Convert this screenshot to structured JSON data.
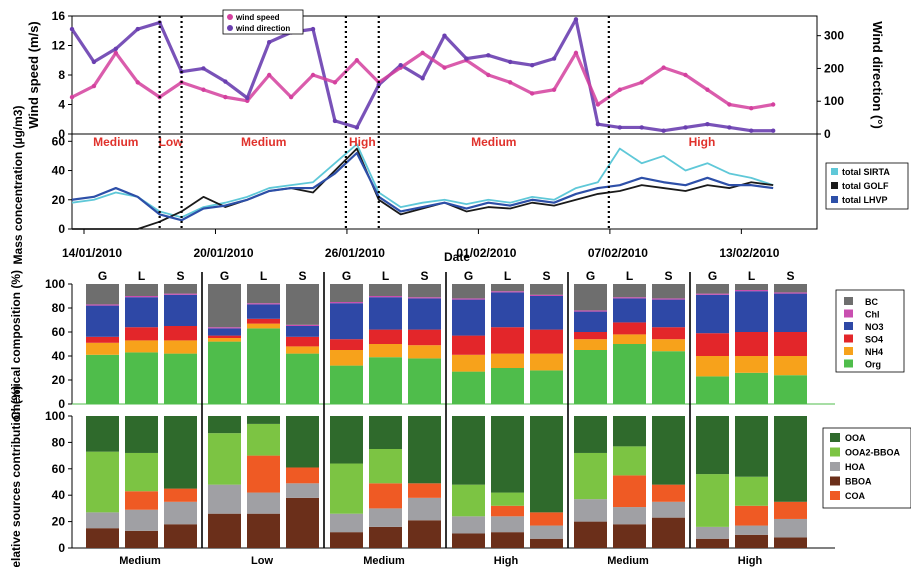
{
  "colors": {
    "wind_speed": "#d4409e",
    "wind_direction": "#6a3fb0",
    "sirta": "#5fc8d8",
    "golf": "#1a1a1a",
    "lhvp": "#2d4fa8",
    "regime_label": "#e0322c",
    "BC": "#6e6e6e",
    "Chl": "#c94fb0",
    "NO3": "#2e48a6",
    "SO4": "#e3262a",
    "NH4": "#f7a21b",
    "Org": "#4fbd4b",
    "OOA": "#2f6a2c",
    "OOA2-BBOA": "#7cc443",
    "HOA": "#a0a0a4",
    "BBOA": "#6b2f1a",
    "COA": "#ef5a24"
  },
  "chart_data": [
    {
      "type": "line",
      "panel": "wind",
      "ylabel": "Wind speed (m/s)",
      "y2label": "Wind direction (°)",
      "ylim": [
        0,
        16
      ],
      "y2lim": [
        0,
        360
      ],
      "yticks": [
        "0",
        "4",
        "8",
        "12",
        "16"
      ],
      "y2ticks": [
        "0",
        "100",
        "200",
        "300"
      ],
      "legend": [
        "wind speed",
        "wind direction"
      ],
      "legend_position": "top-left",
      "x_dates": [
        "14/01/2010",
        "20/01/2010",
        "26/01/2010",
        "01/02/2010",
        "07/02/2010",
        "13/02/2010"
      ],
      "x_day_index": [
        0,
        6,
        12,
        18,
        24,
        30
      ],
      "xlim": [
        0,
        34
      ],
      "series": [
        {
          "name": "wind speed",
          "x": [
            0,
            1,
            2,
            3,
            4,
            5,
            6,
            7,
            8,
            9,
            10,
            11,
            12,
            13,
            14,
            15,
            16,
            17,
            18,
            19,
            20,
            21,
            22,
            23,
            24,
            25,
            26,
            27,
            28,
            29,
            30,
            31,
            32
          ],
          "values": [
            5,
            6.5,
            11,
            7,
            5,
            7,
            6,
            5,
            4.5,
            8,
            5,
            8,
            7,
            10,
            7,
            9,
            11,
            9,
            10,
            8,
            7,
            5.5,
            6,
            11,
            4,
            6,
            7,
            9,
            8,
            6,
            4,
            3.5,
            4
          ]
        },
        {
          "name": "wind direction",
          "x": [
            0,
            1,
            2,
            3,
            4,
            5,
            6,
            7,
            8,
            9,
            10,
            11,
            12,
            13,
            14,
            15,
            16,
            17,
            18,
            19,
            20,
            21,
            22,
            23,
            24,
            25,
            26,
            27,
            28,
            29,
            30,
            31,
            32
          ],
          "values": [
            320,
            220,
            260,
            320,
            340,
            190,
            200,
            160,
            110,
            280,
            310,
            320,
            40,
            20,
            150,
            210,
            170,
            300,
            230,
            240,
            220,
            210,
            230,
            350,
            30,
            20,
            20,
            10,
            20,
            30,
            20,
            10,
            10
          ]
        }
      ]
    },
    {
      "type": "line",
      "panel": "mass",
      "ylabel": "Mass concentration (µg/m3)",
      "xlabel": "Date",
      "ylim": [
        0,
        65
      ],
      "yticks": [
        "0",
        "20",
        "40",
        "60"
      ],
      "legend": [
        "total SIRTA",
        "total GOLF",
        "total LHVP"
      ],
      "legend_position": "right",
      "regimes": [
        {
          "label": "Medium",
          "x_start": 0,
          "x_end": 4
        },
        {
          "label": "Low",
          "x_start": 4,
          "x_end": 5
        },
        {
          "label": "Medium",
          "x_start": 5,
          "x_end": 12.5
        },
        {
          "label": "High",
          "x_start": 12.5,
          "x_end": 14
        },
        {
          "label": "Medium",
          "x_start": 14,
          "x_end": 24.5
        },
        {
          "label": "High",
          "x_start": 24.5,
          "x_end": 33
        }
      ],
      "regime_boundaries": [
        4,
        5,
        12.5,
        14,
        24.5
      ],
      "series": [
        {
          "name": "total SIRTA",
          "x": [
            0,
            1,
            2,
            3,
            4,
            5,
            6,
            7,
            8,
            9,
            10,
            11,
            12,
            13,
            14,
            15,
            16,
            17,
            18,
            19,
            20,
            21,
            22,
            23,
            24,
            25,
            26,
            27,
            28,
            29,
            30,
            31,
            32
          ],
          "values": [
            18,
            20,
            25,
            22,
            12,
            8,
            15,
            18,
            22,
            28,
            30,
            32,
            45,
            58,
            25,
            15,
            18,
            20,
            17,
            20,
            18,
            22,
            20,
            28,
            32,
            55,
            45,
            50,
            40,
            45,
            38,
            35,
            30
          ]
        },
        {
          "name": "total GOLF",
          "x": [
            0,
            1,
            2,
            3,
            4,
            5,
            6,
            7,
            8,
            9,
            10,
            11,
            12,
            13,
            14,
            15,
            16,
            17,
            18,
            19,
            20,
            21,
            22,
            23,
            24,
            25,
            26,
            27,
            28,
            29,
            30,
            31,
            32
          ],
          "values": [
            0,
            0,
            0,
            0,
            5,
            12,
            22,
            15,
            20,
            26,
            28,
            25,
            40,
            55,
            20,
            10,
            14,
            18,
            12,
            15,
            14,
            18,
            16,
            20,
            24,
            26,
            30,
            28,
            26,
            30,
            28,
            32,
            30
          ]
        },
        {
          "name": "total LHVP",
          "x": [
            0,
            1,
            2,
            3,
            4,
            5,
            6,
            7,
            8,
            9,
            10,
            11,
            12,
            13,
            14,
            15,
            16,
            17,
            18,
            19,
            20,
            21,
            22,
            23,
            24,
            25,
            26,
            27,
            28,
            29,
            30,
            31,
            32
          ],
          "values": [
            20,
            22,
            28,
            22,
            10,
            6,
            14,
            16,
            20,
            26,
            28,
            28,
            38,
            52,
            22,
            12,
            15,
            18,
            14,
            18,
            16,
            20,
            18,
            24,
            28,
            30,
            35,
            32,
            30,
            35,
            30,
            30,
            28
          ]
        }
      ]
    },
    {
      "type": "bar",
      "panel": "chemical",
      "stacked": true,
      "ylabel": "Chemical composition (%)",
      "ylim": [
        0,
        100
      ],
      "yticks": [
        "0",
        "20",
        "40",
        "60",
        "80",
        "100"
      ],
      "group_site_labels": [
        "G",
        "L",
        "S"
      ],
      "legend": [
        "BC",
        "Chl",
        "NO3",
        "SO4",
        "NH4",
        "Org"
      ],
      "legend_position": "right",
      "components": [
        "Org",
        "NH4",
        "SO4",
        "NO3",
        "Chl",
        "BC"
      ],
      "groups": [
        {
          "sites": [
            [
              41,
              10,
              5,
              26,
              1,
              17
            ],
            [
              43,
              10,
              11,
              25,
              1,
              10
            ],
            [
              42,
              11,
              12,
              26,
              1,
              8
            ]
          ]
        },
        {
          "sites": [
            [
              52,
              3,
              2,
              6,
              1,
              36
            ],
            [
              63,
              4,
              4,
              12,
              1,
              16
            ],
            [
              42,
              6,
              8,
              9,
              1,
              34
            ]
          ]
        },
        {
          "sites": [
            [
              32,
              13,
              9,
              30,
              1,
              15
            ],
            [
              39,
              11,
              12,
              27,
              1,
              10
            ],
            [
              38,
              11,
              13,
              26,
              1,
              11
            ]
          ]
        },
        {
          "sites": [
            [
              27,
              14,
              16,
              30,
              1,
              12
            ],
            [
              30,
              12,
              22,
              29,
              1,
              6
            ],
            [
              28,
              14,
              20,
              28,
              1,
              9
            ]
          ]
        },
        {
          "sites": [
            [
              45,
              9,
              6,
              17,
              1,
              22
            ],
            [
              50,
              8,
              10,
              20,
              1,
              11
            ],
            [
              44,
              10,
              10,
              23,
              1,
              12
            ]
          ]
        },
        {
          "sites": [
            [
              23,
              17,
              19,
              32,
              1,
              8
            ],
            [
              26,
              14,
              20,
              34,
              1,
              5
            ],
            [
              24,
              16,
              20,
              32,
              1,
              7
            ]
          ]
        }
      ]
    },
    {
      "type": "bar",
      "panel": "sources",
      "stacked": true,
      "ylabel": "Relative sources contribution (%)",
      "ylim": [
        0,
        100
      ],
      "yticks": [
        "0",
        "20",
        "40",
        "60",
        "80",
        "100"
      ],
      "legend": [
        "OOA",
        "OOA2-BBOA",
        "HOA",
        "BBOA",
        "COA"
      ],
      "legend_position": "right",
      "components": [
        "BBOA",
        "HOA",
        "COA",
        "OOA2-BBOA",
        "OOA"
      ],
      "group_labels": [
        "Medium",
        "Low",
        "Medium",
        "High",
        "Medium",
        "High"
      ],
      "groups": [
        {
          "sites": [
            [
              15,
              12,
              0,
              46,
              27
            ],
            [
              13,
              16,
              14,
              29,
              28
            ],
            [
              18,
              17,
              10,
              0,
              55
            ]
          ]
        },
        {
          "sites": [
            [
              26,
              22,
              0,
              39,
              13
            ],
            [
              26,
              16,
              28,
              24,
              6
            ],
            [
              38,
              11,
              12,
              0,
              39
            ]
          ]
        },
        {
          "sites": [
            [
              12,
              14,
              0,
              38,
              36
            ],
            [
              16,
              14,
              19,
              26,
              25
            ],
            [
              21,
              17,
              11,
              0,
              51
            ]
          ]
        },
        {
          "sites": [
            [
              11,
              13,
              0,
              24,
              52
            ],
            [
              12,
              12,
              8,
              10,
              58
            ],
            [
              7,
              10,
              10,
              0,
              73
            ]
          ]
        },
        {
          "sites": [
            [
              20,
              17,
              0,
              35,
              28
            ],
            [
              18,
              13,
              24,
              22,
              23
            ],
            [
              23,
              12,
              13,
              0,
              52
            ]
          ]
        },
        {
          "sites": [
            [
              7,
              9,
              0,
              40,
              44
            ],
            [
              10,
              7,
              15,
              22,
              46
            ],
            [
              8,
              14,
              13,
              0,
              65
            ]
          ]
        }
      ]
    }
  ]
}
